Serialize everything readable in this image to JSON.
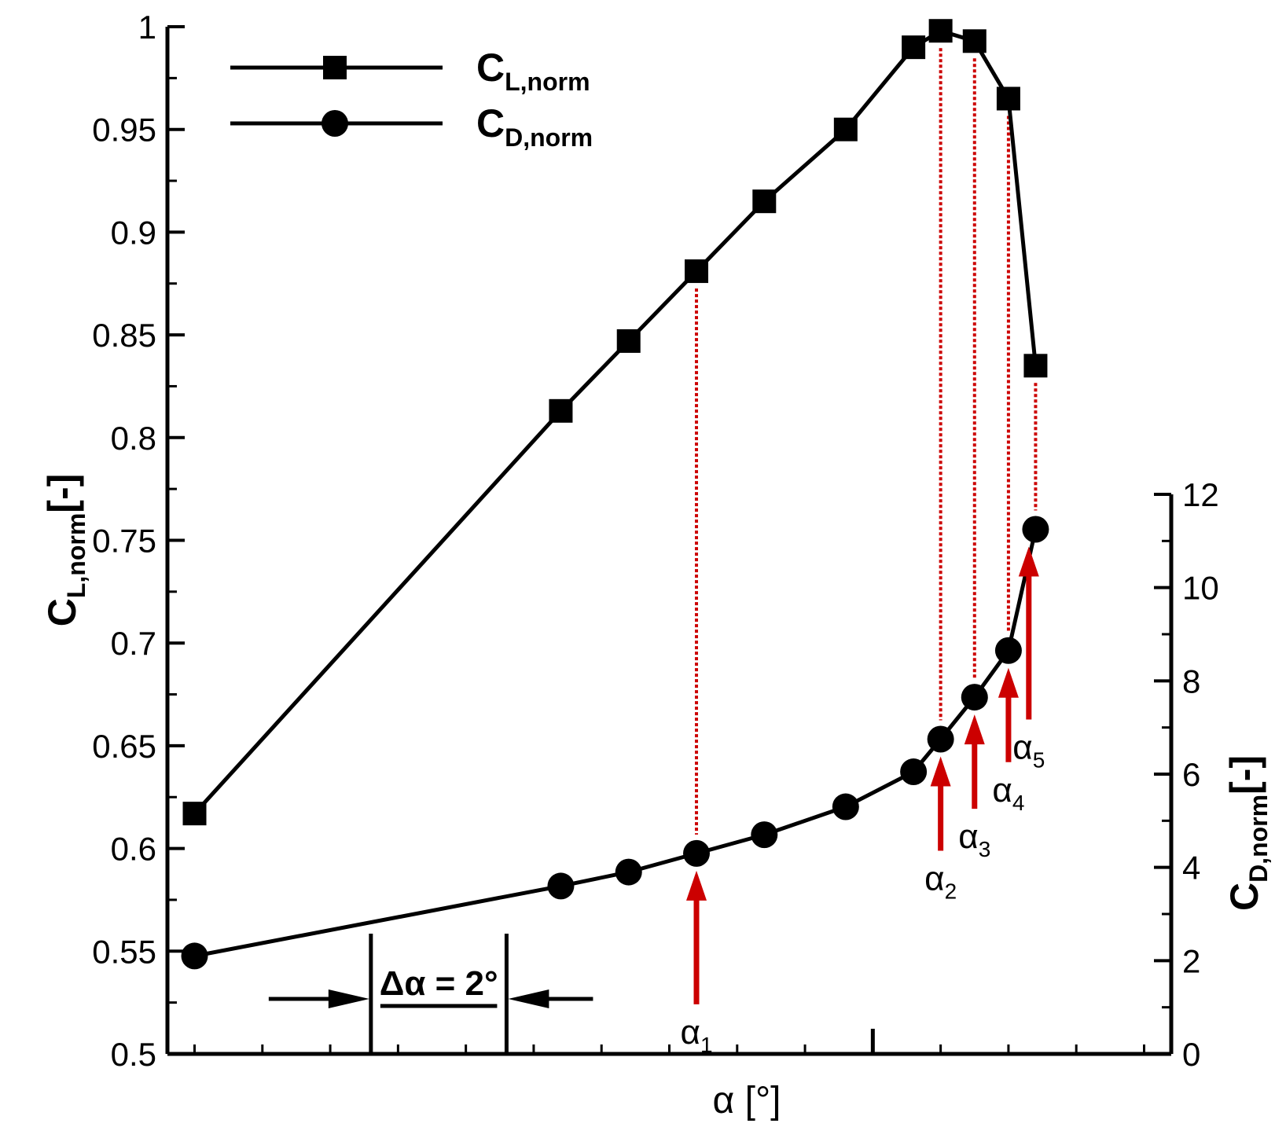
{
  "chart_data": {
    "type": "line",
    "title": "",
    "xlabel": "α [°]",
    "x_axis": {
      "label": "α [°]",
      "tick_labels_shown": false,
      "range": [
        -2.4,
        12.4
      ],
      "major_tick_at": 8,
      "minor_tick_step": 1
    },
    "y_left": {
      "title_base": "C",
      "title_sub": "L,norm",
      "title_suffix": "[-]",
      "range": [
        0.5,
        1.0
      ],
      "ticks": [
        {
          "value": 0.5,
          "label": "0.5"
        },
        {
          "value": 0.55,
          "label": "0.55"
        },
        {
          "value": 0.6,
          "label": "0.6"
        },
        {
          "value": 0.65,
          "label": "0.65"
        },
        {
          "value": 0.7,
          "label": "0.7"
        },
        {
          "value": 0.75,
          "label": "0.75"
        },
        {
          "value": 0.8,
          "label": "0.8"
        },
        {
          "value": 0.85,
          "label": "0.85"
        },
        {
          "value": 0.9,
          "label": "0.9"
        },
        {
          "value": 0.95,
          "label": "0.95"
        },
        {
          "value": 1.0,
          "label": "1"
        }
      ]
    },
    "y_right": {
      "title_base": "C",
      "title_sub": "D,norm",
      "title_suffix": "[-]",
      "range": [
        0,
        12
      ],
      "ticks": [
        {
          "value": 0,
          "label": "0"
        },
        {
          "value": 2,
          "label": "2"
        },
        {
          "value": 4,
          "label": "4"
        },
        {
          "value": 6,
          "label": "6"
        },
        {
          "value": 8,
          "label": "8"
        },
        {
          "value": 10,
          "label": "10"
        },
        {
          "value": 12,
          "label": "12"
        }
      ]
    },
    "series": [
      {
        "name": "CL,norm",
        "legend_base": "C",
        "legend_sub": "L,norm",
        "marker": "square",
        "axis": "left",
        "x": [
          -2,
          3.4,
          4.4,
          5.4,
          6.4,
          7.6,
          8.6,
          9.0,
          9.5,
          10.0,
          10.4
        ],
        "values": [
          0.617,
          0.813,
          0.847,
          0.881,
          0.915,
          0.95,
          0.99,
          0.998,
          0.993,
          0.965,
          0.835
        ]
      },
      {
        "name": "CD,norm",
        "legend_base": "C",
        "legend_sub": "D,norm",
        "marker": "circle",
        "axis": "right",
        "x": [
          -2,
          3.4,
          4.4,
          5.4,
          6.4,
          7.6,
          8.6,
          9.0,
          9.5,
          10.0,
          10.4
        ],
        "values": [
          2.1,
          3.6,
          3.9,
          4.3,
          4.7,
          5.3,
          6.05,
          6.75,
          7.65,
          8.65,
          11.25
        ]
      }
    ],
    "annotations": {
      "alpha_markers": [
        {
          "base": "α",
          "sub": "1",
          "x": 5.4
        },
        {
          "base": "α",
          "sub": "2",
          "x": 9.0
        },
        {
          "base": "α",
          "sub": "3",
          "x": 9.5
        },
        {
          "base": "α",
          "sub": "4",
          "x": 10.0
        },
        {
          "base": "α",
          "sub": "5",
          "x": 10.3
        }
      ],
      "delta_alpha": {
        "label": "Δα = 2°",
        "from_x": 0.6,
        "to_x": 2.6
      }
    },
    "legend_position": "top-left",
    "colors": {
      "series": "#000000",
      "annotation": "#cc0000"
    }
  }
}
